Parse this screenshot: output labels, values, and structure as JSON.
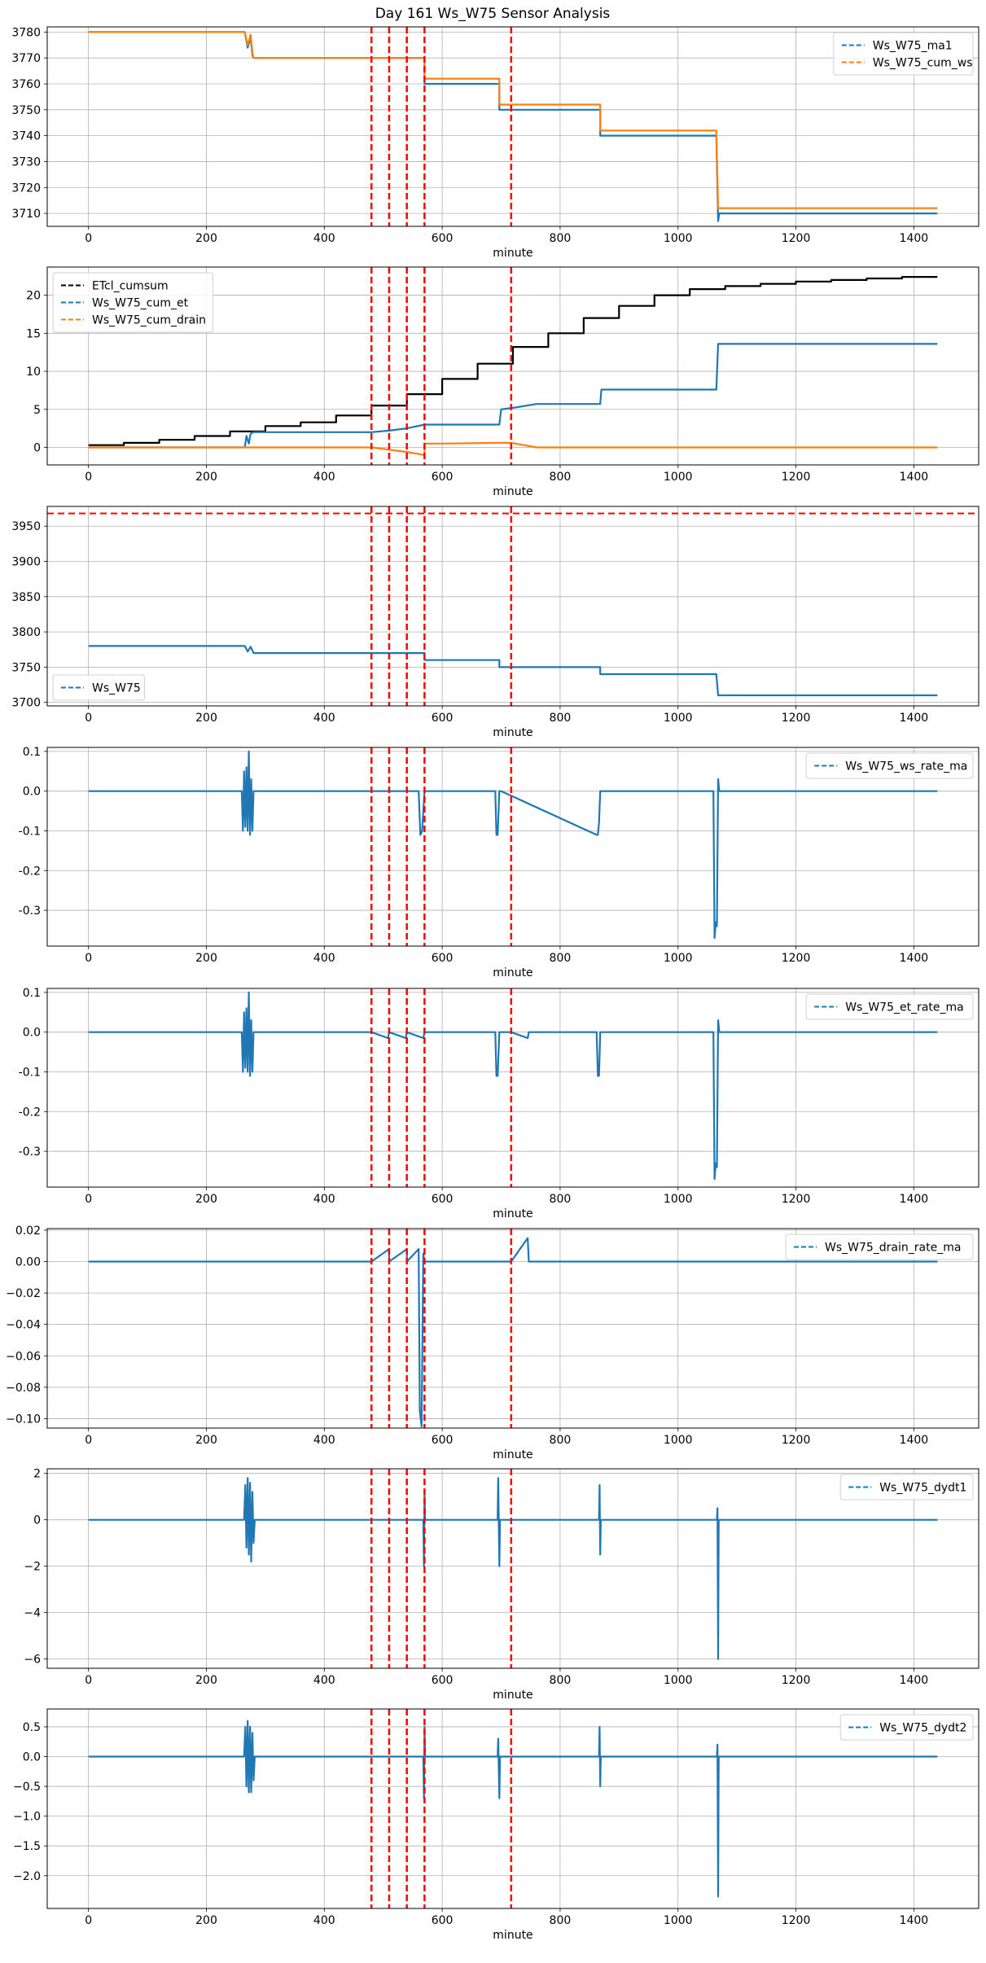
{
  "title": "Day 161 Ws_W75 Sensor Analysis",
  "colors": {
    "blue": "#1f77b4",
    "orange": "#ff7f0e",
    "black": "#000000",
    "red": "#ff0000",
    "grid": "#b0b0b0"
  },
  "chart_data": [
    {
      "type": "line",
      "xlabel": "minute",
      "xlim": [
        -70,
        1510
      ],
      "ylim": [
        3705,
        3782
      ],
      "xticks": [
        0,
        200,
        400,
        600,
        800,
        1000,
        1200,
        1400
      ],
      "yticks": [
        3710,
        3720,
        3730,
        3740,
        3750,
        3760,
        3770,
        3780
      ],
      "vlines": [
        480,
        510,
        540,
        570,
        717
      ],
      "legend": "upper right",
      "series": [
        {
          "name": "Ws_W75_ma1",
          "color": "blue",
          "x": [
            0,
            265,
            270,
            275,
            278,
            280,
            570,
            570,
            697,
            697,
            868,
            868,
            1065,
            1068,
            1070,
            1440
          ],
          "y": [
            3780,
            3780,
            3774,
            3778,
            3771,
            3770,
            3770,
            3760,
            3760,
            3750,
            3750,
            3740,
            3740,
            3707,
            3710,
            3710
          ]
        },
        {
          "name": "Ws_W75_cum_ws",
          "color": "orange",
          "x": [
            0,
            265,
            270,
            275,
            278,
            280,
            570,
            570,
            697,
            697,
            868,
            868,
            1065,
            1068,
            1440
          ],
          "y": [
            3780,
            3780,
            3775,
            3779,
            3772,
            3770,
            3770,
            3762,
            3762,
            3752,
            3752,
            3742,
            3742,
            3712,
            3712
          ]
        }
      ]
    },
    {
      "type": "line",
      "xlabel": "minute",
      "xlim": [
        -70,
        1510
      ],
      "ylim": [
        -2.3,
        23.7
      ],
      "xticks": [
        0,
        200,
        400,
        600,
        800,
        1000,
        1200,
        1400
      ],
      "yticks": [
        0,
        5,
        10,
        15,
        20
      ],
      "ytick_labels": [
        "0",
        "5",
        "10",
        "15",
        "20"
      ],
      "vlines": [
        480,
        510,
        540,
        570,
        717
      ],
      "legend": "upper left",
      "series": [
        {
          "name": "ETcl_cumsum",
          "color": "black",
          "x": [
            0,
            60,
            60,
            120,
            120,
            180,
            180,
            240,
            240,
            300,
            300,
            360,
            360,
            420,
            420,
            480,
            480,
            540,
            540,
            600,
            600,
            660,
            660,
            720,
            720,
            780,
            780,
            840,
            840,
            900,
            900,
            960,
            960,
            1020,
            1020,
            1080,
            1080,
            1140,
            1140,
            1200,
            1200,
            1260,
            1260,
            1320,
            1320,
            1380,
            1380,
            1440
          ],
          "y": [
            0.3,
            0.3,
            0.6,
            0.6,
            1.0,
            1.0,
            1.5,
            1.5,
            2.1,
            2.1,
            2.8,
            2.8,
            3.3,
            3.3,
            4.2,
            4.2,
            5.5,
            5.5,
            7.0,
            7.0,
            9.0,
            9.0,
            11.0,
            11.0,
            13.2,
            13.2,
            15.0,
            15.0,
            17.0,
            17.0,
            18.6,
            18.6,
            20.0,
            20.0,
            20.8,
            20.8,
            21.2,
            21.2,
            21.5,
            21.5,
            21.8,
            21.8,
            22.0,
            22.0,
            22.2,
            22.2,
            22.4,
            22.4
          ]
        },
        {
          "name": "Ws_W75_cum_et",
          "color": "blue",
          "x": [
            0,
            265,
            268,
            272,
            275,
            280,
            480,
            510,
            540,
            570,
            600,
            697,
            700,
            720,
            760,
            868,
            870,
            1065,
            1068,
            1440
          ],
          "y": [
            0,
            0,
            1.5,
            0.5,
            1.8,
            2.0,
            2.0,
            2.2,
            2.5,
            3.0,
            3.0,
            3.0,
            5.0,
            5.2,
            5.7,
            5.7,
            7.6,
            7.6,
            13.6,
            13.6
          ]
        },
        {
          "name": "Ws_W75_cum_drain",
          "color": "orange",
          "x": [
            0,
            480,
            510,
            540,
            570,
            570,
            600,
            697,
            717,
            760,
            1440
          ],
          "y": [
            0,
            0,
            -0.3,
            -0.6,
            -1.0,
            0.5,
            0.5,
            0.6,
            0.6,
            0.0,
            0.0
          ]
        }
      ]
    },
    {
      "type": "line",
      "xlabel": "minute",
      "xlim": [
        -70,
        1510
      ],
      "ylim": [
        3695,
        3978
      ],
      "xticks": [
        0,
        200,
        400,
        600,
        800,
        1000,
        1200,
        1400
      ],
      "yticks": [
        3700,
        3750,
        3800,
        3850,
        3900,
        3950
      ],
      "vlines": [
        480,
        510,
        540,
        570,
        717
      ],
      "hline": 3968,
      "legend": "lower left",
      "series": [
        {
          "name": "Ws_W75",
          "color": "blue",
          "x": [
            0,
            265,
            270,
            275,
            280,
            570,
            570,
            697,
            697,
            868,
            868,
            1065,
            1068,
            1440
          ],
          "y": [
            3780,
            3780,
            3772,
            3779,
            3770,
            3770,
            3760,
            3760,
            3750,
            3750,
            3740,
            3740,
            3710,
            3710
          ]
        }
      ]
    },
    {
      "type": "line",
      "xlabel": "minute",
      "xlim": [
        -70,
        1510
      ],
      "ylim": [
        -0.39,
        0.11
      ],
      "xticks": [
        0,
        200,
        400,
        600,
        800,
        1000,
        1200,
        1400
      ],
      "yticks": [
        0.1,
        0.0,
        -0.1,
        -0.2,
        -0.3
      ],
      "ytick_labels": [
        "0.1",
        "0.0",
        "-0.1",
        "-0.2",
        "-0.3"
      ],
      "vlines": [
        480,
        510,
        540,
        570,
        717
      ],
      "legend": "upper right",
      "series": [
        {
          "name": "Ws_W75_ws_rate_ma",
          "color": "blue",
          "x": [
            0,
            260,
            262,
            264,
            266,
            268,
            270,
            272,
            274,
            276,
            278,
            280,
            560,
            563,
            566,
            570,
            690,
            692,
            694,
            697,
            700,
            862,
            864,
            866,
            868,
            1060,
            1062,
            1064,
            1066,
            1068,
            1070,
            1440
          ],
          "y": [
            0,
            0,
            -0.1,
            0.05,
            -0.09,
            0.06,
            -0.1,
            0.1,
            -0.11,
            0.03,
            -0.1,
            0,
            0,
            -0.11,
            -0.1,
            0,
            0,
            -0.11,
            -0.11,
            0,
            0,
            -0.11,
            -0.11,
            -0.08,
            0,
            0,
            -0.37,
            -0.33,
            -0.34,
            0.03,
            0,
            0
          ]
        }
      ]
    },
    {
      "type": "line",
      "xlabel": "minute",
      "xlim": [
        -70,
        1510
      ],
      "ylim": [
        -0.39,
        0.11
      ],
      "xticks": [
        0,
        200,
        400,
        600,
        800,
        1000,
        1200,
        1400
      ],
      "yticks": [
        0.1,
        0.0,
        -0.1,
        -0.2,
        -0.3
      ],
      "ytick_labels": [
        "0.1",
        "0.0",
        "-0.1",
        "-0.2",
        "-0.3"
      ],
      "vlines": [
        480,
        510,
        540,
        570,
        717
      ],
      "legend": "upper right",
      "series": [
        {
          "name": "Ws_W75_et_rate_ma",
          "color": "blue",
          "x": [
            0,
            260,
            262,
            264,
            266,
            268,
            270,
            272,
            274,
            276,
            278,
            280,
            480,
            508,
            510,
            538,
            540,
            568,
            570,
            690,
            692,
            694,
            697,
            700,
            717,
            745,
            747,
            862,
            864,
            866,
            868,
            1060,
            1062,
            1064,
            1066,
            1068,
            1070,
            1440
          ],
          "y": [
            0,
            0,
            -0.1,
            0.05,
            -0.09,
            0.06,
            -0.1,
            0.1,
            -0.11,
            0.03,
            -0.1,
            0,
            0,
            -0.015,
            0,
            -0.015,
            0,
            -0.015,
            0,
            0,
            -0.11,
            -0.11,
            0,
            0,
            0,
            -0.015,
            0,
            0,
            -0.11,
            -0.11,
            0,
            0,
            -0.37,
            -0.33,
            -0.34,
            0.03,
            0,
            0
          ]
        }
      ]
    },
    {
      "type": "line",
      "xlabel": "minute",
      "xlim": [
        -70,
        1510
      ],
      "ylim": [
        -0.106,
        0.021
      ],
      "xticks": [
        0,
        200,
        400,
        600,
        800,
        1000,
        1200,
        1400
      ],
      "yticks": [
        0.02,
        0.0,
        -0.02,
        -0.04,
        -0.06,
        -0.08,
        -0.1
      ],
      "ytick_labels": [
        "0.02",
        "0.00",
        "−0.02",
        "−0.04",
        "−0.06",
        "−0.08",
        "−0.10"
      ],
      "vlines": [
        480,
        510,
        540,
        570,
        717
      ],
      "legend": "upper right",
      "series": [
        {
          "name": "Ws_W75_drain_rate_ma",
          "color": "blue",
          "x": [
            0,
            480,
            510,
            510,
            540,
            540,
            560,
            562,
            565,
            568,
            570,
            717,
            745,
            747,
            1440
          ],
          "y": [
            0,
            0,
            0.008,
            0,
            0.008,
            0,
            0.008,
            -0.095,
            -0.105,
            0.005,
            0,
            0,
            0.015,
            0,
            0
          ]
        }
      ]
    },
    {
      "type": "line",
      "xlabel": "minute",
      "xlim": [
        -70,
        1510
      ],
      "ylim": [
        -6.4,
        2.2
      ],
      "xticks": [
        0,
        200,
        400,
        600,
        800,
        1000,
        1200,
        1400
      ],
      "yticks": [
        2,
        0,
        -2,
        -4,
        -6
      ],
      "ytick_labels": [
        "2",
        "0",
        "−2",
        "−4",
        "−6"
      ],
      "vlines": [
        480,
        510,
        540,
        570,
        717
      ],
      "legend": "upper right",
      "series": [
        {
          "name": "Ws_W75_dydt1",
          "color": "blue",
          "x": [
            0,
            264,
            266,
            268,
            270,
            272,
            274,
            276,
            278,
            280,
            282,
            568,
            569,
            570,
            571,
            694,
            695,
            697,
            698,
            866,
            867,
            868,
            869,
            1066,
            1067,
            1068,
            1069,
            1440
          ],
          "y": [
            0,
            0,
            1.5,
            -1.2,
            1.8,
            -1.5,
            1.6,
            -1.8,
            1.2,
            -1.0,
            0,
            0,
            -2.0,
            1.2,
            0,
            0,
            1.8,
            -2.0,
            0,
            0,
            1.5,
            -1.5,
            0,
            0,
            0.5,
            -6.0,
            0,
            0
          ]
        }
      ]
    },
    {
      "type": "line",
      "xlabel": "minute",
      "xlim": [
        -70,
        1510
      ],
      "ylim": [
        -2.55,
        0.8
      ],
      "xticks": [
        0,
        200,
        400,
        600,
        800,
        1000,
        1200,
        1400
      ],
      "yticks": [
        0.5,
        0.0,
        -0.5,
        -1.0,
        -1.5,
        -2.0
      ],
      "ytick_labels": [
        "0.5",
        "0.0",
        "−0.5",
        "−1.0",
        "−1.5",
        "−2.0"
      ],
      "vlines": [
        480,
        510,
        540,
        570,
        717
      ],
      "legend": "upper right",
      "series": [
        {
          "name": "Ws_W75_dydt2",
          "color": "blue",
          "x": [
            0,
            264,
            266,
            268,
            270,
            272,
            274,
            276,
            278,
            280,
            282,
            568,
            569,
            570,
            571,
            694,
            695,
            697,
            698,
            866,
            867,
            868,
            869,
            1066,
            1067,
            1068,
            1069,
            1440
          ],
          "y": [
            0,
            0,
            0.5,
            -0.5,
            0.6,
            -0.6,
            0.5,
            -0.6,
            0.4,
            -0.4,
            0,
            0,
            -0.7,
            0.5,
            0,
            0,
            0.3,
            -0.7,
            0,
            0,
            0.5,
            -0.5,
            0,
            0,
            0.2,
            -2.35,
            0,
            0
          ]
        }
      ]
    }
  ]
}
